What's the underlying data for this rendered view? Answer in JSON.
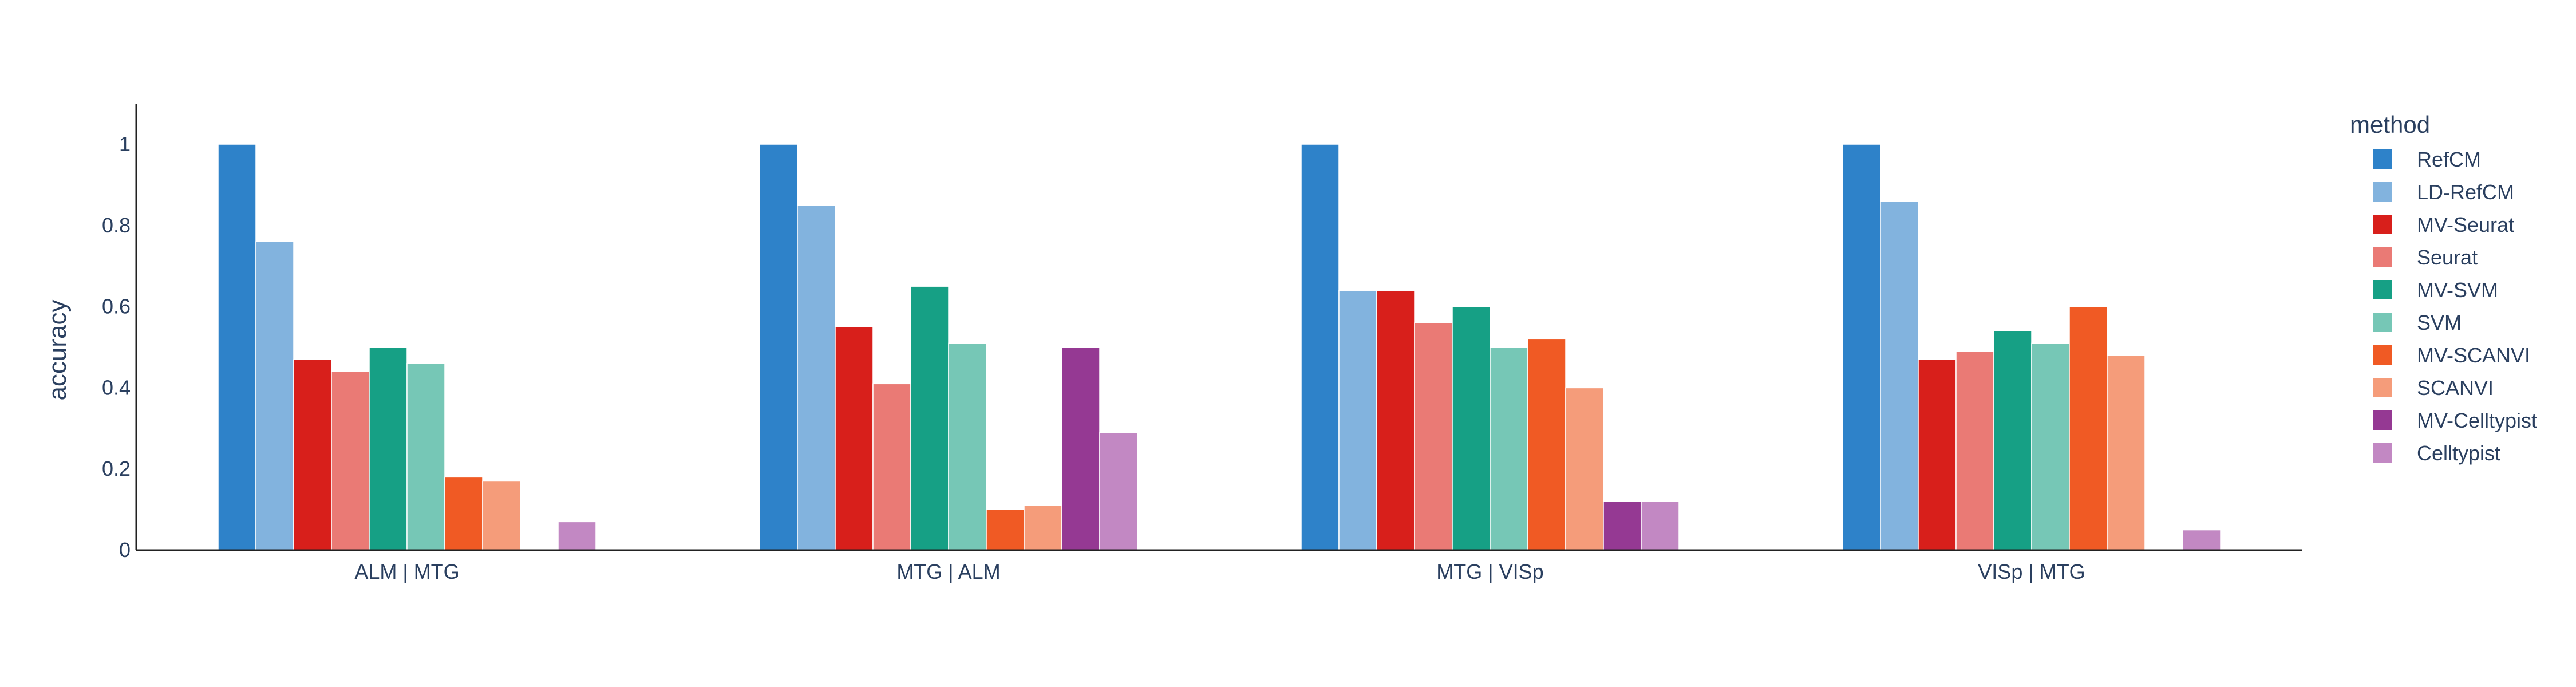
{
  "chart_data": {
    "type": "bar",
    "title": "",
    "xlabel": "",
    "ylabel": "accuracy",
    "ylim": [
      0,
      1.1
    ],
    "yticks": [
      0,
      0.2,
      0.4,
      0.6,
      0.8,
      1
    ],
    "ytick_labels": [
      "0",
      "0.2",
      "0.4",
      "0.6",
      "0.8",
      "1"
    ],
    "grid": false,
    "legend": {
      "title": "method",
      "placement": "right"
    },
    "categories": [
      "ALM | MTG",
      "MTG | ALM",
      "MTG | VISp",
      "VISp | MTG"
    ],
    "series": [
      {
        "name": "RefCM",
        "color": "#2e82c9",
        "values": [
          1.0,
          1.0,
          1.0,
          1.0
        ]
      },
      {
        "name": "LD-RefCM",
        "color": "#82b3de",
        "values": [
          0.76,
          0.85,
          0.64,
          0.86
        ]
      },
      {
        "name": "MV-Seurat",
        "color": "#d81f1b",
        "values": [
          0.47,
          0.55,
          0.64,
          0.47
        ]
      },
      {
        "name": "Seurat",
        "color": "#ea7a75",
        "values": [
          0.44,
          0.41,
          0.56,
          0.49
        ]
      },
      {
        "name": "MV-SVM",
        "color": "#16a085",
        "values": [
          0.5,
          0.65,
          0.6,
          0.54
        ]
      },
      {
        "name": "SVM",
        "color": "#76c7b6",
        "values": [
          0.46,
          0.51,
          0.5,
          0.51
        ]
      },
      {
        "name": "MV-SCANVI",
        "color": "#f05a24",
        "values": [
          0.18,
          0.1,
          0.52,
          0.6
        ]
      },
      {
        "name": "SCANVI",
        "color": "#f59c7a",
        "values": [
          0.17,
          0.11,
          0.4,
          0.48
        ]
      },
      {
        "name": "MV-Celltypist",
        "color": "#953993",
        "values": [
          0,
          0.5,
          0.12,
          0
        ]
      },
      {
        "name": "Celltypist",
        "color": "#c288c3",
        "values": [
          0.07,
          0.29,
          0.12,
          0.05
        ]
      }
    ]
  }
}
